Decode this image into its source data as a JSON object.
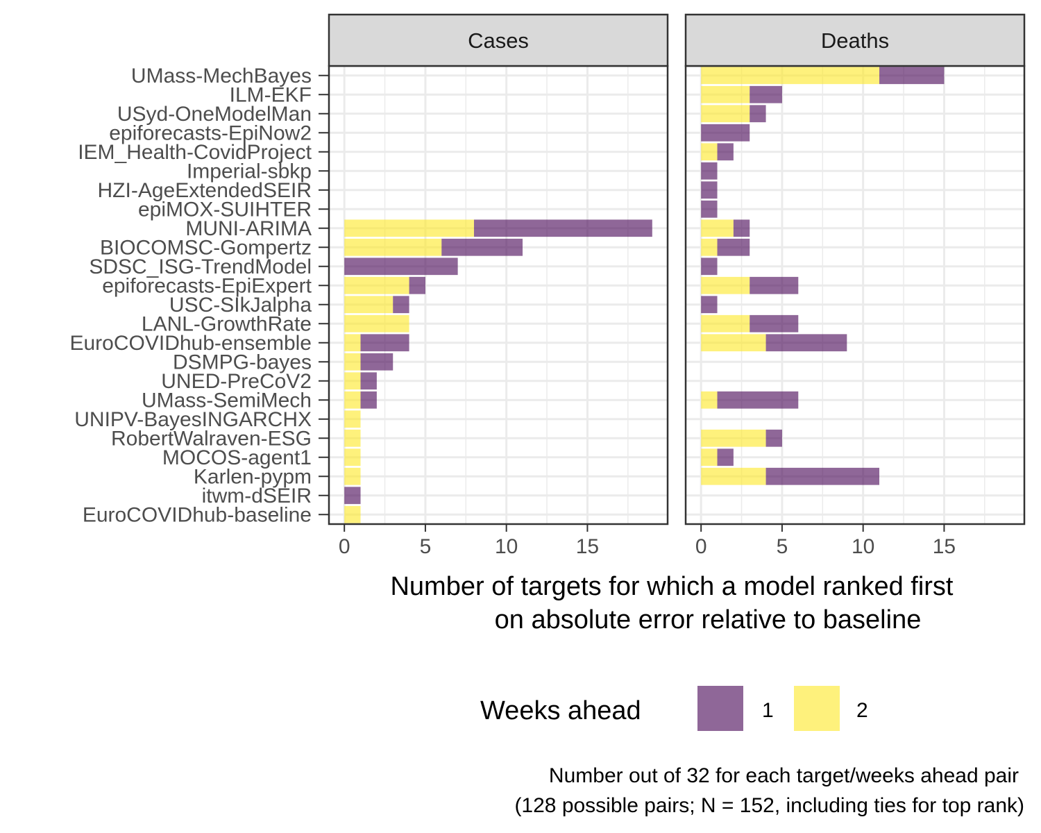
{
  "chart_data": {
    "type": "bar",
    "orientation": "horizontal",
    "stacked": true,
    "panels": [
      "Cases",
      "Deaths"
    ],
    "categories": [
      "UMass-MechBayes",
      "ILM-EKF",
      "USyd-OneModelMan",
      "epiforecasts-EpiNow2",
      "IEM_Health-CovidProject",
      "Imperial-sbkp",
      "HZI-AgeExtendedSEIR",
      "epiMOX-SUIHTER",
      "MUNI-ARIMA",
      "BIOCOMSC-Gompertz",
      "SDSC_ISG-TrendModel",
      "epiforecasts-EpiExpert",
      "USC-SIkJalpha",
      "LANL-GrowthRate",
      "EuroCOVIDhub-ensemble",
      "DSMPG-bayes",
      "UNED-PreCoV2",
      "UMass-SemiMech",
      "UNIPV-BayesINGARCHX",
      "RobertWalraven-ESG",
      "MOCOS-agent1",
      "Karlen-pypm",
      "itwm-dSEIR",
      "EuroCOVIDhub-baseline"
    ],
    "series": [
      {
        "name": "2",
        "color": "#FDE725",
        "values": {
          "Cases": [
            0,
            0,
            0,
            0,
            0,
            0,
            0,
            0,
            8,
            6,
            0,
            4,
            3,
            4,
            1,
            1,
            1,
            1,
            1,
            1,
            1,
            1,
            0,
            1
          ],
          "Deaths": [
            11,
            3,
            3,
            0,
            1,
            0,
            0,
            0,
            2,
            1,
            0,
            3,
            0,
            3,
            4,
            0,
            0,
            1,
            0,
            4,
            1,
            4,
            0,
            0
          ]
        }
      },
      {
        "name": "1",
        "color": "#440154",
        "values": {
          "Cases": [
            0,
            0,
            0,
            0,
            0,
            0,
            0,
            0,
            11,
            5,
            7,
            1,
            1,
            0,
            3,
            2,
            1,
            1,
            0,
            0,
            0,
            0,
            1,
            0
          ],
          "Deaths": [
            4,
            2,
            1,
            3,
            1,
            1,
            1,
            1,
            1,
            2,
            1,
            3,
            1,
            3,
            5,
            0,
            0,
            5,
            0,
            1,
            1,
            7,
            0,
            0
          ]
        }
      }
    ],
    "bar_opacity": 0.6,
    "xlim": [
      -0.95,
      19.95
    ],
    "xticks": [
      0,
      5,
      10,
      15
    ],
    "xlabel_lines": [
      "Number of targets for which a model ranked first",
      "on absolute error relative to baseline"
    ],
    "legend": {
      "title": "Weeks ahead",
      "position": "bottom",
      "entries": [
        {
          "label": "1",
          "color": "#440154"
        },
        {
          "label": "2",
          "color": "#FDE725"
        }
      ]
    },
    "caption_lines": [
      "Number out of 32 for each target/weeks ahead pair",
      "(128 possible pairs; N = 152, including ties for top rank)"
    ],
    "grid": true
  }
}
